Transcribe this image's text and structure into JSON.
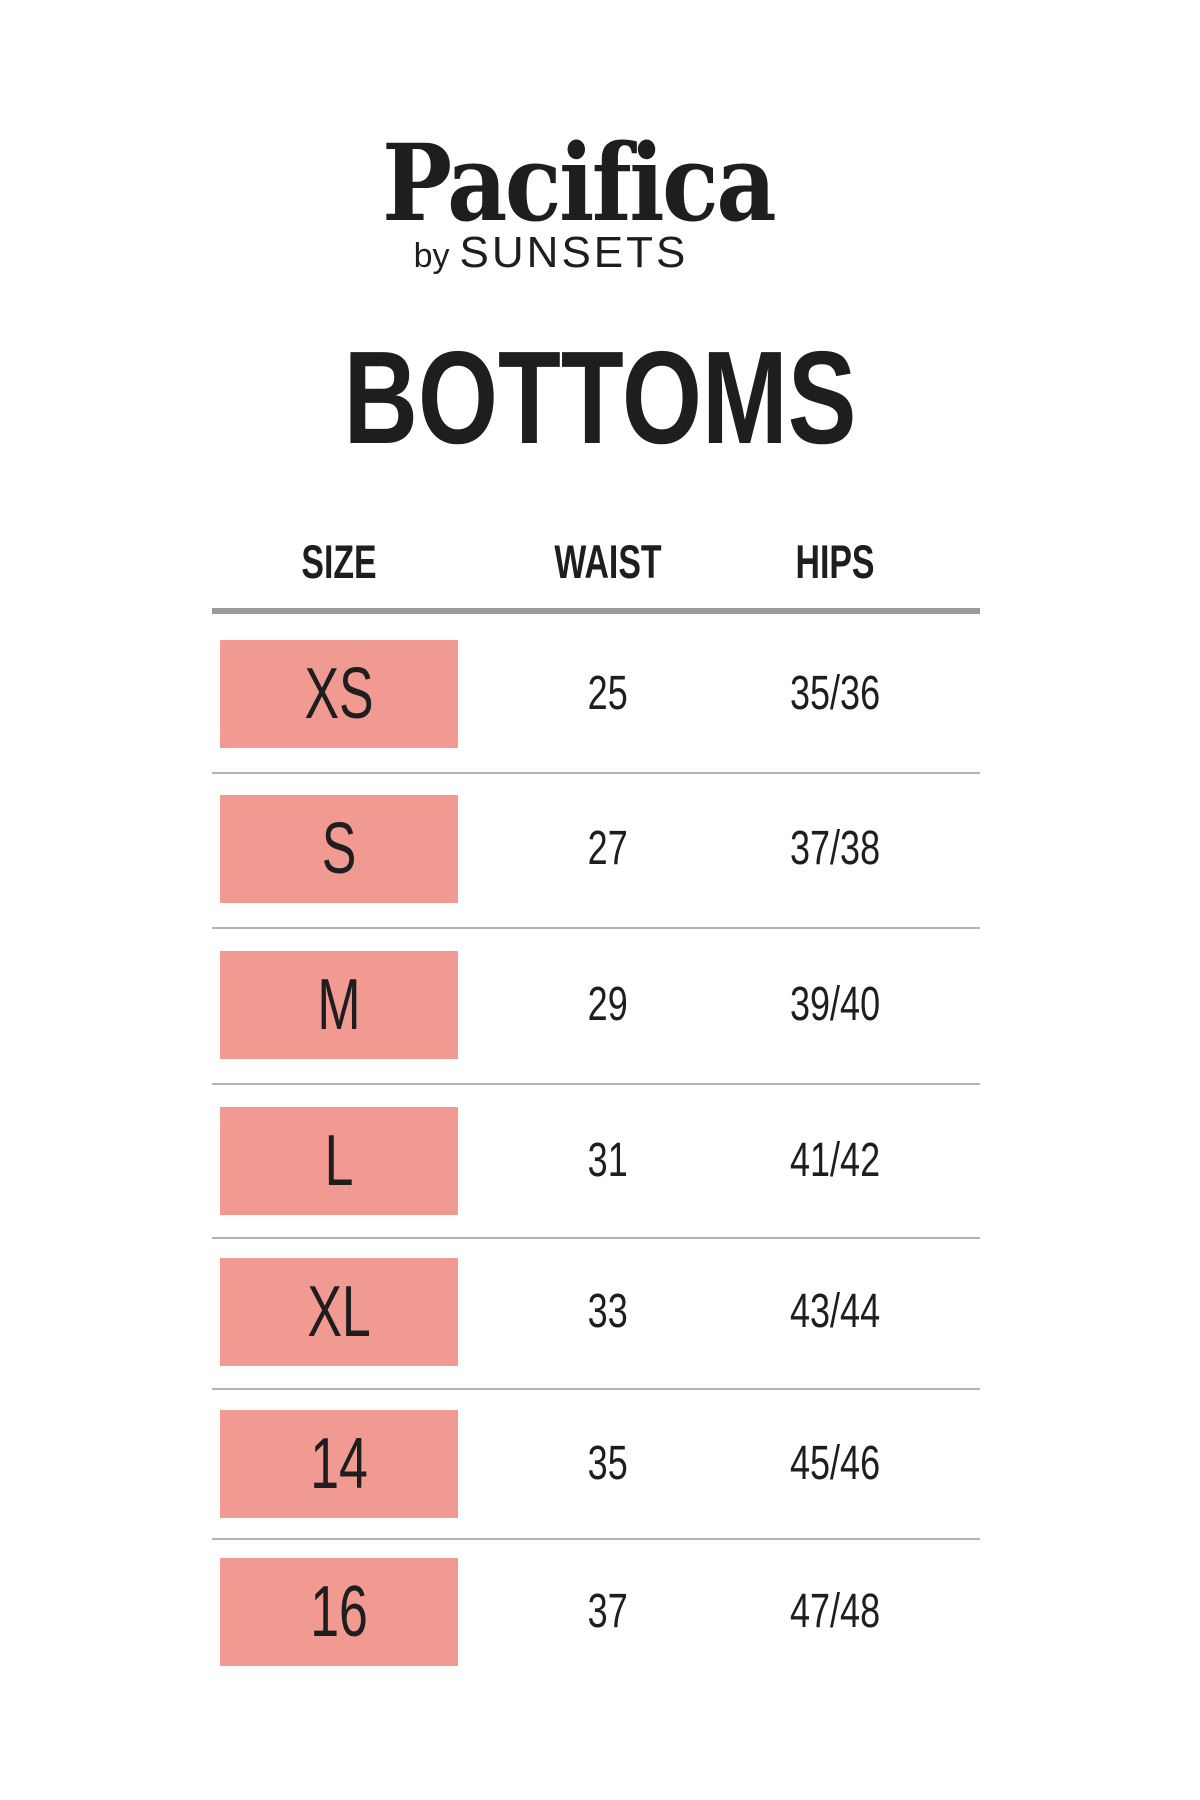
{
  "brand": {
    "name": "Pacifica",
    "by_prefix": "by",
    "by_name": "SUNSETS"
  },
  "page": {
    "title": "BOTTOMS"
  },
  "table": {
    "columns": [
      "SIZE",
      "WAIST",
      "HIPS"
    ],
    "rows": [
      {
        "size": "XS",
        "waist": "25",
        "hips": "35/36"
      },
      {
        "size": "S",
        "waist": "27",
        "hips": "37/38"
      },
      {
        "size": "M",
        "waist": "29",
        "hips": "39/40"
      },
      {
        "size": "L",
        "waist": "31",
        "hips": "41/42"
      },
      {
        "size": "XL",
        "waist": "33",
        "hips": "43/44"
      },
      {
        "size": "14",
        "waist": "35",
        "hips": "45/46"
      },
      {
        "size": "16",
        "waist": "37",
        "hips": "47/48"
      }
    ]
  },
  "colors": {
    "accent_pink": "#f09a92",
    "header_rule": "#9b9b9b",
    "row_rule": "#b4b2b2",
    "text": "#1e1e1e"
  },
  "chart_data": {
    "type": "table",
    "title": "BOTTOMS",
    "columns": [
      "SIZE",
      "WAIST",
      "HIPS"
    ],
    "rows": [
      [
        "XS",
        "25",
        "35/36"
      ],
      [
        "S",
        "27",
        "37/38"
      ],
      [
        "M",
        "29",
        "39/40"
      ],
      [
        "L",
        "31",
        "41/42"
      ],
      [
        "XL",
        "33",
        "43/44"
      ],
      [
        "14",
        "35",
        "45/46"
      ],
      [
        "16",
        "37",
        "47/48"
      ]
    ]
  }
}
